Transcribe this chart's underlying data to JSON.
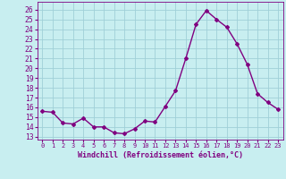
{
  "x": [
    0,
    1,
    2,
    3,
    4,
    5,
    6,
    7,
    8,
    9,
    10,
    11,
    12,
    13,
    14,
    15,
    16,
    17,
    18,
    19,
    20,
    21,
    22,
    23
  ],
  "y": [
    15.6,
    15.5,
    14.4,
    14.3,
    14.9,
    14.0,
    14.0,
    13.4,
    13.3,
    13.8,
    14.6,
    14.5,
    16.1,
    17.7,
    21.0,
    24.5,
    25.9,
    25.0,
    24.2,
    22.5,
    20.4,
    17.4,
    16.5,
    15.8
  ],
  "line_color": "#800080",
  "marker": "D",
  "marker_size": 2.0,
  "bg_color": "#c8eef0",
  "grid_color": "#a0d0d8",
  "ylabel_ticks": [
    13,
    14,
    15,
    16,
    17,
    18,
    19,
    20,
    21,
    22,
    23,
    24,
    25,
    26
  ],
  "ylim": [
    12.7,
    26.8
  ],
  "xlim": [
    -0.5,
    23.5
  ],
  "xlabel": "Windchill (Refroidissement éolien,°C)",
  "tick_label_color": "#800080",
  "tick_color": "#800080",
  "xlabel_fontsize": 6.0,
  "ytick_fontsize": 5.8,
  "xtick_fontsize": 5.0,
  "linewidth": 1.0
}
